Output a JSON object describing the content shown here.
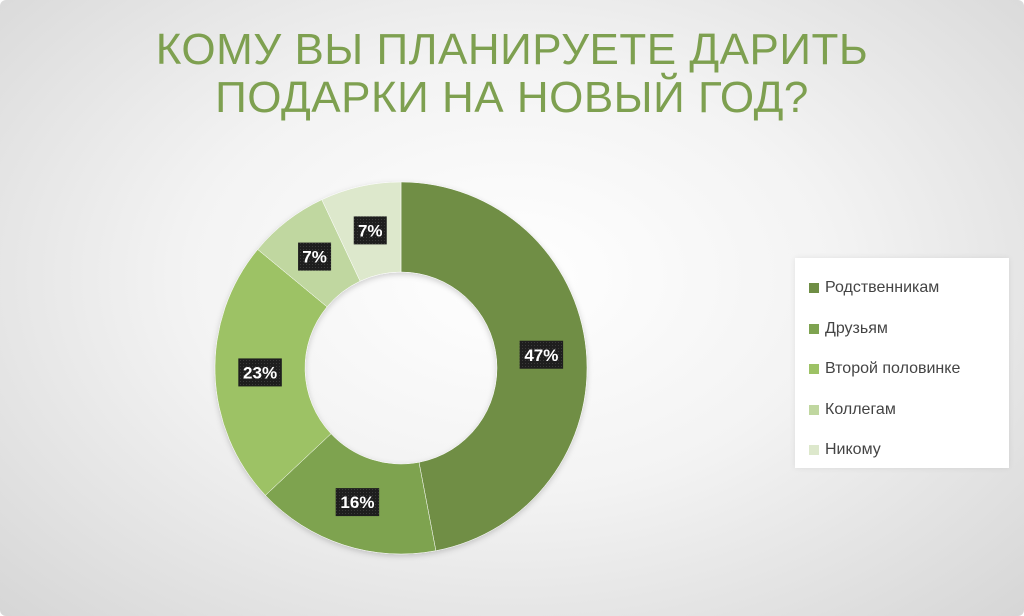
{
  "title": {
    "line1": "КОМУ ВЫ ПЛАНИРУЕТЕ ДАРИТЬ",
    "line2": "ПОДАРКИ НА НОВЫЙ ГОД?"
  },
  "chart_data": {
    "type": "pie",
    "style": "donut",
    "categories": [
      "Родственникам",
      "Друзьям",
      "Второй половинке",
      "Коллегам",
      "Никому"
    ],
    "values": [
      47,
      16,
      23,
      7,
      7
    ],
    "data_labels": [
      "47%",
      "16%",
      "23%",
      "7%",
      "7%"
    ],
    "colors": [
      "#6f8e45",
      "#7ea350",
      "#9dc265",
      "#c0d7a0",
      "#dde8cc"
    ],
    "legend_position": "right"
  }
}
